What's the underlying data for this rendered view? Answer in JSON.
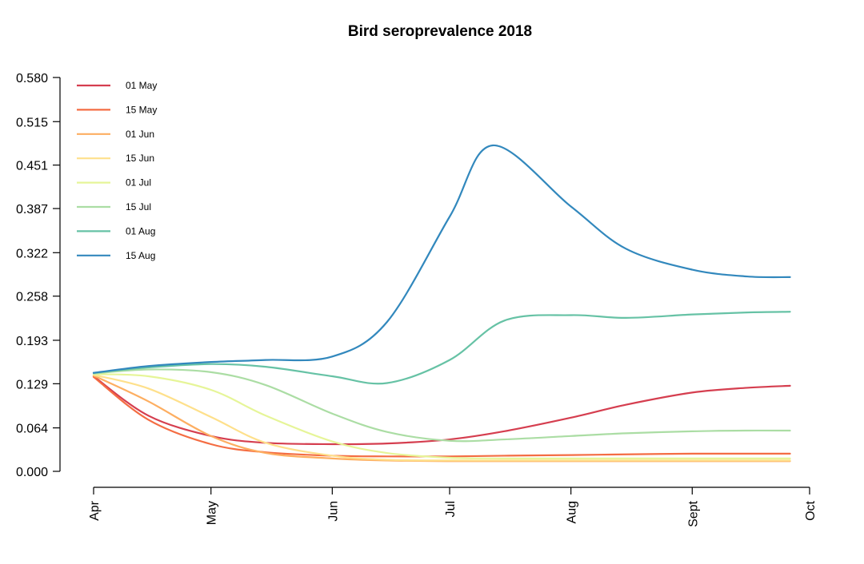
{
  "chart_data": {
    "type": "line",
    "title": "Bird seroprevalence 2018",
    "xlabel": "",
    "ylabel": "",
    "xlim": [
      "2018-04-01",
      "2018-10-01"
    ],
    "ylim": [
      0.0,
      0.58
    ],
    "x_ticks": [
      {
        "date": "2018-04-01",
        "label": "Apr"
      },
      {
        "date": "2018-05-01",
        "label": "May"
      },
      {
        "date": "2018-06-01",
        "label": "Jun"
      },
      {
        "date": "2018-07-01",
        "label": "Jul"
      },
      {
        "date": "2018-08-01",
        "label": "Aug"
      },
      {
        "date": "2018-09-01",
        "label": "Sept"
      },
      {
        "date": "2018-10-01",
        "label": "Oct"
      }
    ],
    "y_ticks": [
      "0.000",
      "0.064",
      "0.129",
      "0.193",
      "0.258",
      "0.322",
      "0.387",
      "0.451",
      "0.515",
      "0.580"
    ],
    "grid": false,
    "legend_position": "top-left",
    "series": [
      {
        "name": "01 May",
        "color": "#D53E4F",
        "points": [
          [
            "2018-04-01",
            0.14
          ],
          [
            "2018-04-15",
            0.082
          ],
          [
            "2018-05-01",
            0.052
          ],
          [
            "2018-05-15",
            0.042
          ],
          [
            "2018-06-01",
            0.04
          ],
          [
            "2018-06-15",
            0.041
          ],
          [
            "2018-07-01",
            0.047
          ],
          [
            "2018-07-15",
            0.059
          ],
          [
            "2018-08-01",
            0.079
          ],
          [
            "2018-08-15",
            0.098
          ],
          [
            "2018-09-01",
            0.116
          ],
          [
            "2018-09-15",
            0.123
          ],
          [
            "2018-09-26",
            0.126
          ]
        ]
      },
      {
        "name": "15 May",
        "color": "#F46D43",
        "points": [
          [
            "2018-04-01",
            0.139
          ],
          [
            "2018-04-15",
            0.076
          ],
          [
            "2018-05-01",
            0.04
          ],
          [
            "2018-05-15",
            0.028
          ],
          [
            "2018-06-01",
            0.023
          ],
          [
            "2018-06-15",
            0.022
          ],
          [
            "2018-07-01",
            0.022
          ],
          [
            "2018-07-15",
            0.023
          ],
          [
            "2018-08-01",
            0.024
          ],
          [
            "2018-08-15",
            0.025
          ],
          [
            "2018-09-01",
            0.026
          ],
          [
            "2018-09-15",
            0.026
          ],
          [
            "2018-09-26",
            0.026
          ]
        ]
      },
      {
        "name": "01 Jun",
        "color": "#FDAE61",
        "points": [
          [
            "2018-04-01",
            0.141
          ],
          [
            "2018-04-15",
            0.103
          ],
          [
            "2018-05-01",
            0.052
          ],
          [
            "2018-05-15",
            0.027
          ],
          [
            "2018-06-01",
            0.019
          ],
          [
            "2018-06-15",
            0.016
          ],
          [
            "2018-07-01",
            0.015
          ],
          [
            "2018-07-15",
            0.015
          ],
          [
            "2018-08-01",
            0.015
          ],
          [
            "2018-08-15",
            0.015
          ],
          [
            "2018-09-01",
            0.015
          ],
          [
            "2018-09-15",
            0.015
          ],
          [
            "2018-09-26",
            0.015
          ]
        ]
      },
      {
        "name": "15 Jun",
        "color": "#FEE08B",
        "points": [
          [
            "2018-04-01",
            0.142
          ],
          [
            "2018-04-15",
            0.122
          ],
          [
            "2018-05-01",
            0.08
          ],
          [
            "2018-05-15",
            0.042
          ],
          [
            "2018-06-01",
            0.023
          ],
          [
            "2018-06-15",
            0.017
          ],
          [
            "2018-07-01",
            0.016
          ],
          [
            "2018-07-15",
            0.016
          ],
          [
            "2018-08-01",
            0.016
          ],
          [
            "2018-08-15",
            0.016
          ],
          [
            "2018-09-01",
            0.016
          ],
          [
            "2018-09-15",
            0.016
          ],
          [
            "2018-09-26",
            0.016
          ]
        ]
      },
      {
        "name": "01 Jul",
        "color": "#E6F598",
        "points": [
          [
            "2018-04-01",
            0.143
          ],
          [
            "2018-04-15",
            0.14
          ],
          [
            "2018-05-01",
            0.12
          ],
          [
            "2018-05-15",
            0.082
          ],
          [
            "2018-06-01",
            0.044
          ],
          [
            "2018-06-15",
            0.027
          ],
          [
            "2018-07-01",
            0.02
          ],
          [
            "2018-07-15",
            0.019
          ],
          [
            "2018-08-01",
            0.019
          ],
          [
            "2018-08-15",
            0.019
          ],
          [
            "2018-09-01",
            0.019
          ],
          [
            "2018-09-15",
            0.019
          ],
          [
            "2018-09-26",
            0.019
          ]
        ]
      },
      {
        "name": "15 Jul",
        "color": "#ABDDA4",
        "points": [
          [
            "2018-04-01",
            0.144
          ],
          [
            "2018-04-15",
            0.15
          ],
          [
            "2018-05-01",
            0.146
          ],
          [
            "2018-05-15",
            0.127
          ],
          [
            "2018-06-01",
            0.085
          ],
          [
            "2018-06-15",
            0.058
          ],
          [
            "2018-07-01",
            0.045
          ],
          [
            "2018-07-15",
            0.047
          ],
          [
            "2018-08-01",
            0.052
          ],
          [
            "2018-08-15",
            0.056
          ],
          [
            "2018-09-01",
            0.059
          ],
          [
            "2018-09-15",
            0.06
          ],
          [
            "2018-09-26",
            0.06
          ]
        ]
      },
      {
        "name": "01 Aug",
        "color": "#66C2A5",
        "points": [
          [
            "2018-04-01",
            0.145
          ],
          [
            "2018-04-15",
            0.153
          ],
          [
            "2018-05-01",
            0.158
          ],
          [
            "2018-05-15",
            0.154
          ],
          [
            "2018-06-01",
            0.14
          ],
          [
            "2018-06-15",
            0.13
          ],
          [
            "2018-07-01",
            0.164
          ],
          [
            "2018-07-15",
            0.222
          ],
          [
            "2018-08-01",
            0.23
          ],
          [
            "2018-08-15",
            0.226
          ],
          [
            "2018-09-01",
            0.231
          ],
          [
            "2018-09-15",
            0.234
          ],
          [
            "2018-09-26",
            0.235
          ]
        ]
      },
      {
        "name": "15 Aug",
        "color": "#3288BD",
        "points": [
          [
            "2018-04-01",
            0.145
          ],
          [
            "2018-04-15",
            0.155
          ],
          [
            "2018-05-01",
            0.161
          ],
          [
            "2018-05-15",
            0.164
          ],
          [
            "2018-06-01",
            0.169
          ],
          [
            "2018-06-15",
            0.22
          ],
          [
            "2018-07-01",
            0.375
          ],
          [
            "2018-07-12",
            0.48
          ],
          [
            "2018-08-01",
            0.39
          ],
          [
            "2018-08-15",
            0.328
          ],
          [
            "2018-09-01",
            0.297
          ],
          [
            "2018-09-15",
            0.287
          ],
          [
            "2018-09-26",
            0.286
          ]
        ]
      }
    ]
  }
}
